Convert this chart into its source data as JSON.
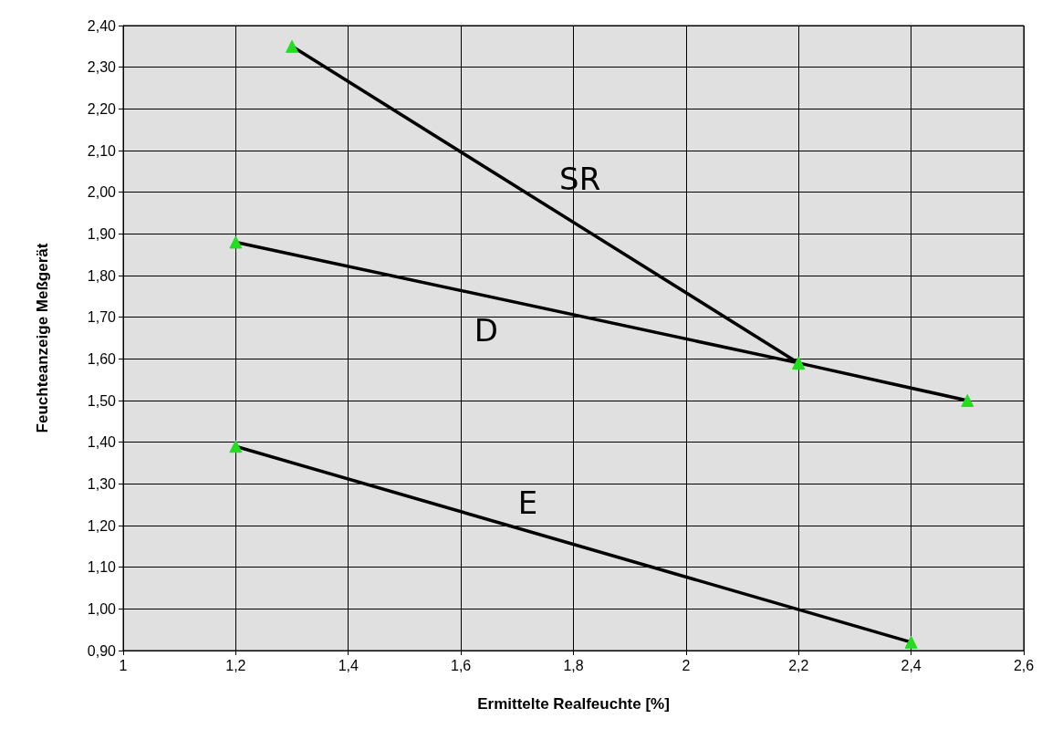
{
  "chart_data": {
    "type": "line",
    "xlabel": "Ermittelte Realfeuchte [%]",
    "ylabel": "Feuchteanzeige Meßgerät",
    "series": [
      {
        "name": "SR",
        "color": "#000000",
        "x": [
          1.3,
          2.2
        ],
        "values": [
          2.35,
          1.59
        ]
      },
      {
        "name": "D",
        "color": "#000000",
        "x": [
          1.2,
          2.2,
          2.5
        ],
        "values": [
          1.88,
          1.59,
          1.5
        ]
      },
      {
        "name": "E",
        "color": "#000000",
        "x": [
          1.2,
          2.4
        ],
        "values": [
          1.39,
          0.92
        ]
      }
    ],
    "marker": "triangle",
    "line_style": "solid",
    "grid": true,
    "legend": false,
    "xlim": [
      1,
      2.6
    ],
    "xticks": [
      1,
      {
        "value": 1.2,
        "label": "1,2"
      },
      {
        "value": 1.4,
        "label": "1,4"
      },
      {
        "value": 1.6,
        "label": "1,6"
      },
      {
        "value": 1.8,
        "label": "1,8"
      },
      2,
      {
        "value": 2.2,
        "label": "2,2"
      },
      {
        "value": 2.4,
        "label": "2,4"
      },
      {
        "value": 2.6,
        "label": "2,6"
      }
    ],
    "ylim": [
      0.9,
      2.4
    ],
    "yticks": [
      {
        "value": 0.9,
        "label": "0,90"
      },
      {
        "value": 1.0,
        "label": "1,00"
      },
      {
        "value": 1.1,
        "label": "1,10"
      },
      {
        "value": 1.2,
        "label": "1,20"
      },
      {
        "value": 1.3,
        "label": "1,30"
      },
      {
        "value": 1.4,
        "label": "1,40"
      },
      {
        "value": 1.5,
        "label": "1,50"
      },
      {
        "value": 1.6,
        "label": "1,60"
      },
      {
        "value": 1.7,
        "label": "1,70"
      },
      {
        "value": 1.8,
        "label": "1,80"
      },
      {
        "value": 1.9,
        "label": "1,90"
      },
      {
        "value": 2.0,
        "label": "2,00"
      },
      {
        "value": 2.1,
        "label": "2,10"
      },
      {
        "value": 2.2,
        "label": "2,20"
      },
      {
        "value": 2.3,
        "label": "2,30"
      },
      {
        "value": 2.4,
        "label": "2,40"
      }
    ]
  }
}
